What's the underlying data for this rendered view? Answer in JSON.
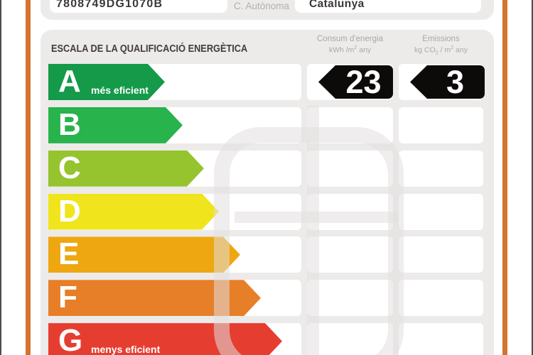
{
  "form": {
    "registry_value": "7808749DG1070B",
    "region_label": "C. Autònoma",
    "region_value": "Catalunya"
  },
  "scale": {
    "title": "ESCALA DE LA QUALIFICACIÓ ENERGÈTICA",
    "columns": {
      "consum": {
        "title": "Consum d'energia",
        "unit_pre": "kWh /m",
        "unit_sup": "2",
        "unit_post": " any"
      },
      "emissions": {
        "title": "Emissions",
        "unit_p1": "kg CO",
        "unit_sub": "2",
        "unit_p2": " / m",
        "unit_sup": "2",
        "unit_p3": " any"
      }
    },
    "ratings": [
      {
        "letter": "A",
        "label": "més eficient",
        "color": "#149a49",
        "bar_end": 232
      },
      {
        "letter": "B",
        "label": "",
        "color": "#28b34d",
        "bar_end": 257
      },
      {
        "letter": "C",
        "label": "",
        "color": "#95c42f",
        "bar_end": 287
      },
      {
        "letter": "D",
        "label": "",
        "color": "#f0e51c",
        "bar_end": 308
      },
      {
        "letter": "E",
        "label": "",
        "color": "#eea711",
        "bar_end": 338
      },
      {
        "letter": "F",
        "label": "",
        "color": "#e67f27",
        "bar_end": 367
      },
      {
        "letter": "G",
        "label": "menys eficient",
        "color": "#e53e30",
        "bar_end": 397
      }
    ],
    "result": {
      "letter": "A",
      "consum_value": "23",
      "emissions_value": "3"
    }
  },
  "colors": {
    "panel_bg": "#edeaea",
    "accent_stripe": "#d3752f",
    "result_arrow": "#0d0a0a",
    "muted_text": "#aba7a7",
    "dark_text": "#3b3737",
    "watermark": "rgba(226,222,222,0.55)"
  }
}
